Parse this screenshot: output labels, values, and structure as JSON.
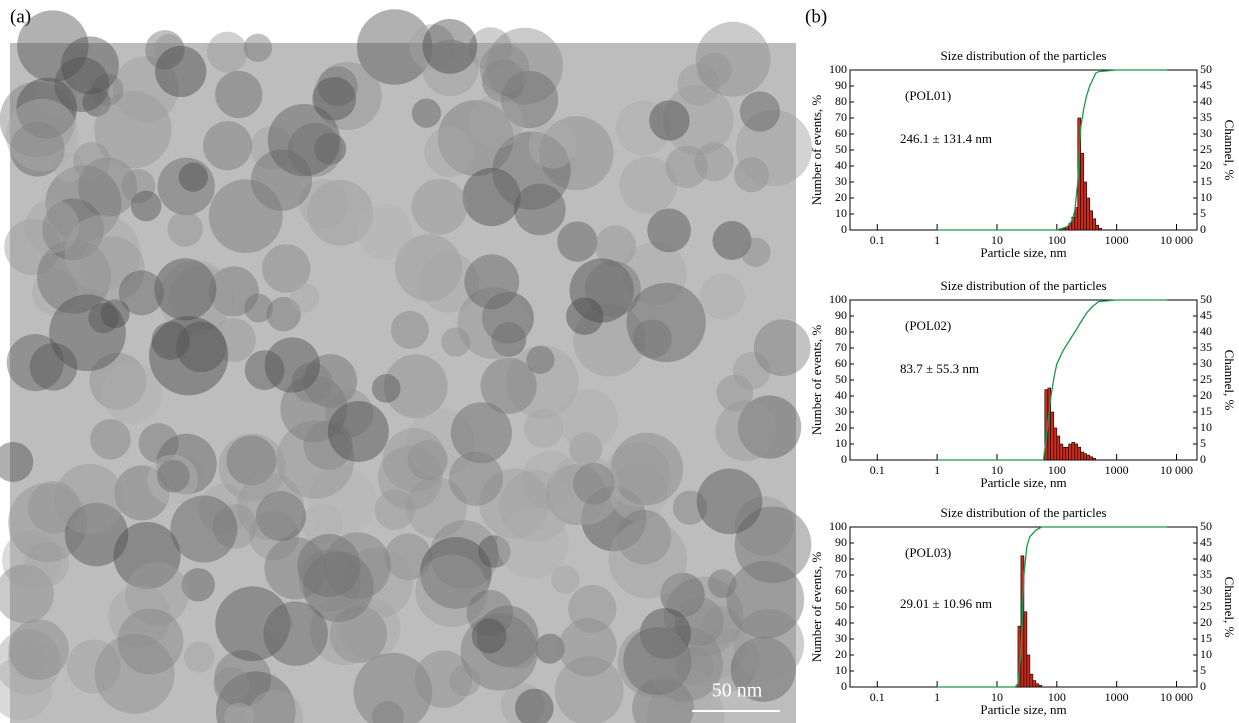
{
  "panels": {
    "a": "(a)",
    "b": "(b)"
  },
  "image": {
    "scale_bar": "50 nm"
  },
  "chart_data": [
    {
      "type": "histogram",
      "title": "Size distribution of the particles",
      "sample": "(POL01)",
      "annotation": "246.1 ± 131.4 nm",
      "xlabel": "Particle size, nm",
      "ylabel": "Number of events, %",
      "y2label": "Channel, %",
      "xscale": "log",
      "xlim": [
        0.035,
        22000
      ],
      "xticks": [
        0.1,
        1,
        10,
        100,
        1000,
        {
          "value": 10000,
          "label": "10 000"
        }
      ],
      "ylim": [
        0,
        100
      ],
      "yticks": [
        0,
        10,
        20,
        30,
        40,
        50,
        60,
        70,
        80,
        90,
        100
      ],
      "y2lim": [
        0,
        50
      ],
      "y2ticks": [
        0,
        5,
        10,
        15,
        20,
        25,
        30,
        35,
        40,
        45,
        50
      ],
      "bins": [
        125,
        140,
        158,
        178,
        200,
        224,
        251,
        282,
        316,
        355,
        398,
        447,
        501,
        562
      ],
      "values": [
        1,
        2,
        4,
        8,
        14,
        70,
        48,
        30,
        20,
        12,
        7,
        3,
        1
      ],
      "color": "#cc2a1a",
      "series": [
        {
          "axis": "y2",
          "color": "#1a9a4a",
          "x": [
            1,
            100,
            150,
            180,
            200,
            224,
            251,
            282,
            316,
            355,
            398,
            447,
            501,
            1000,
            7000
          ],
          "values": [
            0,
            0,
            1,
            3,
            6,
            15,
            32,
            38,
            42,
            45,
            47,
            49,
            49.5,
            50,
            50
          ]
        }
      ]
    },
    {
      "type": "histogram",
      "title": "Size distribution of the particles",
      "sample": "(POL02)",
      "annotation": "83.7 ± 55.3 nm",
      "xlabel": "Particle size, nm",
      "ylabel": "Number of events, %",
      "y2label": "Channel, %",
      "xscale": "log",
      "xlim": [
        0.035,
        22000
      ],
      "xticks": [
        0.1,
        1,
        10,
        100,
        1000,
        {
          "value": 10000,
          "label": "10 000"
        }
      ],
      "ylim": [
        0,
        100
      ],
      "yticks": [
        0,
        10,
        20,
        30,
        40,
        50,
        60,
        70,
        80,
        90,
        100
      ],
      "y2lim": [
        0,
        50
      ],
      "y2ticks": [
        0,
        5,
        10,
        15,
        20,
        25,
        30,
        35,
        40,
        45,
        50
      ],
      "bins": [
        63,
        71,
        79,
        89,
        100,
        112,
        126,
        141,
        158,
        178,
        200,
        224,
        251,
        282,
        316,
        355,
        398,
        447
      ],
      "values": [
        44,
        45,
        30,
        20,
        15,
        10,
        8,
        8,
        10,
        11,
        10,
        8,
        5,
        4,
        3,
        2,
        1
      ],
      "color": "#cc2a1a",
      "series": [
        {
          "axis": "y2",
          "color": "#1a9a4a",
          "x": [
            1,
            60,
            70,
            80,
            90,
            100,
            126,
            158,
            200,
            251,
            316,
            398,
            500,
            1000,
            7000
          ],
          "values": [
            0,
            0,
            10,
            20,
            26,
            30,
            34,
            37,
            40,
            43,
            46,
            48,
            49.5,
            50,
            50
          ]
        }
      ]
    },
    {
      "type": "histogram",
      "title": "Size distribution of the particles",
      "sample": "(POL03)",
      "annotation": "29.01 ± 10.96 nm",
      "xlabel": "Particle size, nm",
      "ylabel": "Number of events, %",
      "y2label": "Channel, %",
      "xscale": "log",
      "xlim": [
        0.035,
        22000
      ],
      "xticks": [
        0.1,
        1,
        10,
        100,
        1000,
        {
          "value": 10000,
          "label": "10 000"
        }
      ],
      "ylim": [
        0,
        100
      ],
      "yticks": [
        0,
        10,
        20,
        30,
        40,
        50,
        60,
        70,
        80,
        90,
        100
      ],
      "y2lim": [
        0,
        50
      ],
      "y2ticks": [
        0,
        5,
        10,
        15,
        20,
        25,
        30,
        35,
        40,
        45,
        50
      ],
      "bins": [
        22.4,
        25.1,
        28.2,
        31.6,
        35.5,
        39.8,
        44.7,
        50.1,
        56.2
      ],
      "values": [
        38,
        82,
        47,
        20,
        8,
        4,
        2,
        1
      ],
      "color": "#cc2a1a",
      "series": [
        {
          "axis": "y2",
          "color": "#1a9a4a",
          "x": [
            1,
            20,
            22.4,
            25.1,
            28.2,
            31.6,
            35.5,
            44.7,
            56,
            100,
            7000
          ],
          "values": [
            0,
            0,
            1,
            10,
            35,
            44,
            47,
            49,
            50,
            50,
            50
          ]
        }
      ]
    }
  ]
}
